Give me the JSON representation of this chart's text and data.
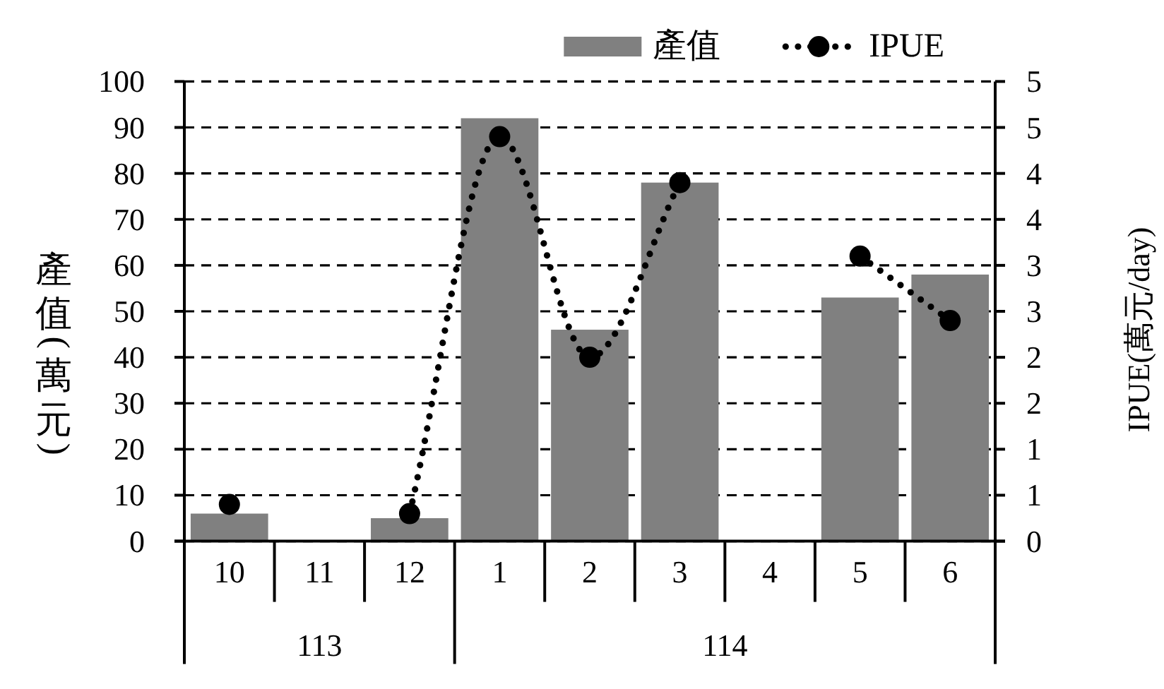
{
  "chart_data": {
    "type": "bar",
    "categories": [
      "10",
      "11",
      "12",
      "1",
      "2",
      "3",
      "4",
      "5",
      "6"
    ],
    "series": [
      {
        "name": "產值",
        "color": "#808080",
        "values": [
          6,
          null,
          5,
          92,
          46,
          78,
          null,
          53,
          58
        ]
      },
      {
        "name": "IPUE",
        "type": "line",
        "axis": "y2",
        "color": "#000000",
        "values": [
          0.4,
          null,
          0.3,
          4.4,
          2.0,
          3.9,
          null,
          3.1,
          2.4
        ]
      }
    ],
    "ylabel": "產值(萬元)",
    "y2label": "IPUE(萬元/day)",
    "ylim": [
      0,
      100
    ],
    "yticks": [
      0,
      10,
      20,
      30,
      40,
      50,
      60,
      70,
      80,
      90,
      100
    ],
    "y2lim": [
      0,
      5
    ],
    "y2ticks": [
      0,
      {
        "value": 0.5,
        "label": "1"
      },
      1,
      {
        "value": 1.5,
        "label": "2"
      },
      2,
      {
        "value": 2.5,
        "label": "3"
      },
      3,
      {
        "value": 3.5,
        "label": "4"
      },
      4,
      {
        "value": 4.5,
        "label": "5"
      },
      5
    ],
    "grid": "y",
    "legend": "top right",
    "marker": "circle",
    "line_style": "dotted",
    "annotations": [
      "113",
      "114"
    ]
  }
}
